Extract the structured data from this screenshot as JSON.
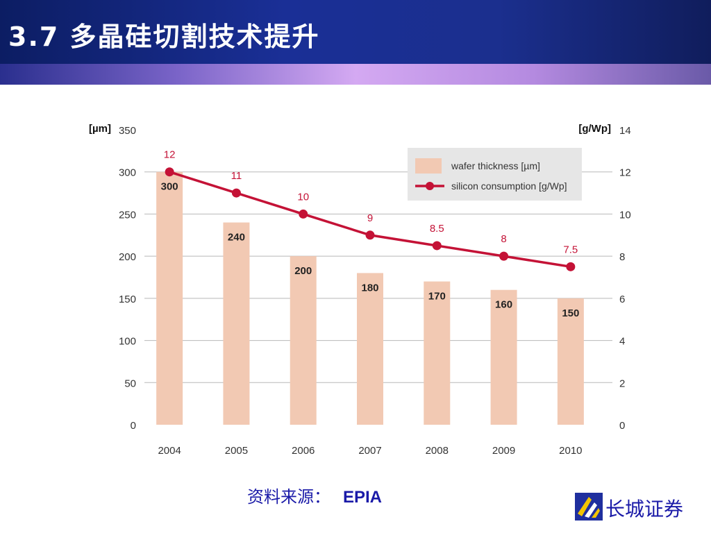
{
  "header": {
    "title": "3.7 多晶硅切割技术提升"
  },
  "chart_data": {
    "type": "bar",
    "categories": [
      "2004",
      "2005",
      "2006",
      "2007",
      "2008",
      "2009",
      "2010"
    ],
    "series": [
      {
        "name": "wafer thickness [µm]",
        "kind": "bar",
        "axis": "left",
        "values": [
          300,
          240,
          200,
          180,
          170,
          160,
          150
        ],
        "labels": [
          "300",
          "240",
          "200",
          "180",
          "170",
          "160",
          "150"
        ]
      },
      {
        "name": "silicon consumption [g/Wp]",
        "kind": "line",
        "axis": "right",
        "values": [
          12,
          11,
          10,
          9,
          8.5,
          8,
          7.5
        ],
        "labels": [
          "12",
          "11",
          "10",
          "9",
          "8.5",
          "8",
          "7.5"
        ]
      }
    ],
    "y_left": {
      "unit": "[µm]",
      "ylim": [
        0,
        350
      ],
      "ticks": [
        "0",
        "50",
        "100",
        "150",
        "200",
        "250",
        "300",
        "350"
      ]
    },
    "y_right": {
      "unit": "[g/Wp]",
      "ylim": [
        0,
        14
      ],
      "ticks": [
        "0",
        "2",
        "4",
        "6",
        "8",
        "10",
        "12",
        "14"
      ]
    },
    "grid": true,
    "legend_position": "top-right",
    "colors": {
      "bar": "#f2c9b3",
      "line": "#c41236",
      "grid": "#b8b8b8",
      "legend_bg": "#e6e6e6"
    }
  },
  "footer": {
    "source_key": "资料来源：",
    "source_value": "EPIA"
  },
  "logo": {
    "name": "长城证券",
    "icon": "great-wall-logo-icon"
  }
}
